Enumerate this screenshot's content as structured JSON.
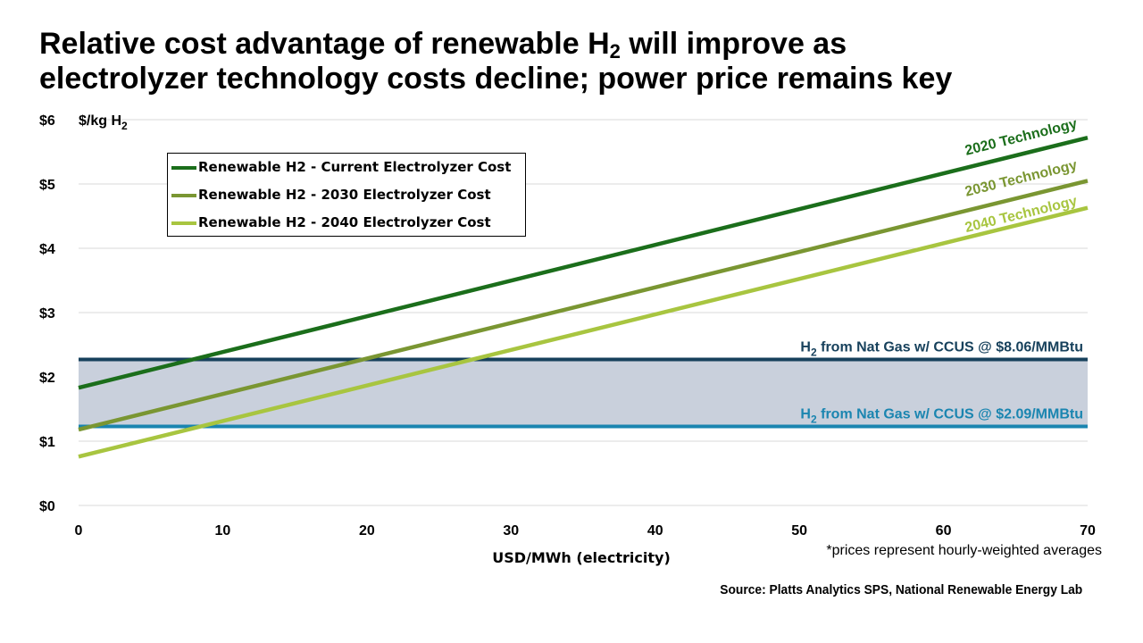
{
  "title": {
    "line1_pre": "Relative cost advantage of renewable H",
    "line1_sub": "2",
    "line1_post": " will improve as",
    "line2": "electrolyzer technology costs decline; power price remains key"
  },
  "colors": {
    "current": "#1b6e1b",
    "y2030": "#7a9632",
    "y2040": "#a8c540",
    "ng_high": "#17415c",
    "ng_low": "#1a85b0",
    "band": "#c9d0dc",
    "grid": "#d9d9d9"
  },
  "chart_data": {
    "type": "line",
    "xlabel": "USD/MWh (electricity)",
    "ylabel": "$/kg H",
    "ylabel_sub": "2",
    "xlim": [
      0,
      70
    ],
    "ylim": [
      0,
      6
    ],
    "x_ticks": [
      "0",
      "10",
      "20",
      "30",
      "40",
      "50",
      "60",
      "70"
    ],
    "y_ticks": [
      "$0",
      "$1",
      "$2",
      "$3",
      "$4",
      "$5",
      "$6"
    ],
    "grid": true,
    "legend_position": "top-left",
    "series": [
      {
        "name": "Renewable H2 - Current Electrolyzer Cost",
        "label": "2020 Technology",
        "color_key": "current",
        "x": [
          0,
          70
        ],
        "y": [
          1.83,
          5.72
        ]
      },
      {
        "name": "Renewable H2 - 2030 Electrolyzer Cost",
        "label": "2030 Technology",
        "color_key": "y2030",
        "x": [
          0,
          70
        ],
        "y": [
          1.18,
          5.05
        ]
      },
      {
        "name": "Renewable H2 - 2040 Electrolyzer Cost",
        "label": "2040 Technology",
        "color_key": "y2040",
        "x": [
          0,
          70
        ],
        "y": [
          0.76,
          4.63
        ]
      }
    ],
    "reference_lines": [
      {
        "label_pre": "H",
        "label_sub": "2",
        "label_post": " from Nat Gas w/ CCUS @ $8.06/MMBtu",
        "y": 2.27,
        "color_key": "ng_high"
      },
      {
        "label_pre": "H",
        "label_sub": "2",
        "label_post": " from Nat Gas w/ CCUS @ $2.09/MMBtu",
        "y": 1.23,
        "color_key": "ng_low"
      }
    ],
    "shaded_band": {
      "y": [
        1.23,
        2.27
      ]
    }
  },
  "note": "*prices represent hourly-weighted averages",
  "source": "Source: Platts Analytics SPS, National Renewable Energy Lab"
}
